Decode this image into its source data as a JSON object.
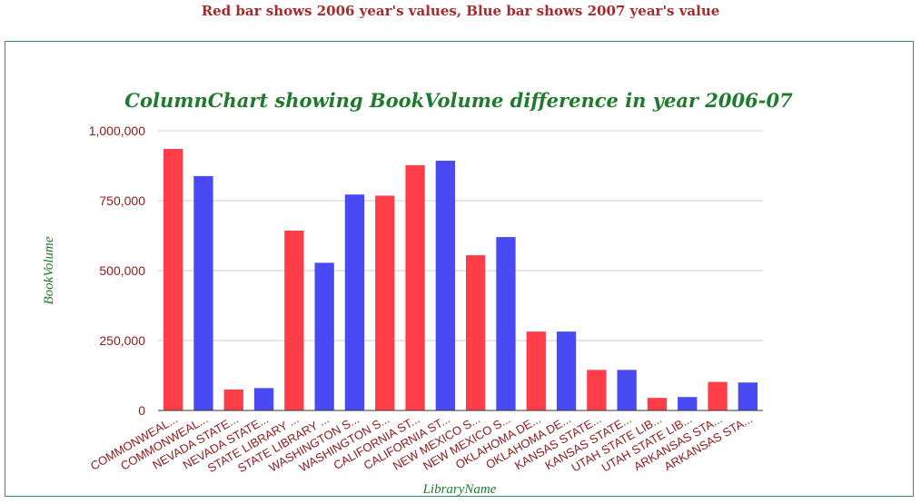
{
  "page": {
    "caption": "Red bar shows 2006 year's values, Blue bar shows 2007 year's value"
  },
  "colors": {
    "year_2006": "#ff3d48",
    "year_2007": "#4a4af5",
    "title": "#1f7a2e",
    "tick_label": "#8b1a1a",
    "frame": "#2a8a8a",
    "grid": "#cccccc"
  },
  "chart_data": {
    "type": "bar",
    "title": "ColumnChart showing BookVolume difference in year 2006-07",
    "xlabel": "LibraryName",
    "ylabel": "BookVolume",
    "ylim": [
      0,
      1000000
    ],
    "yticks": [
      "0",
      "250,000",
      "500,000",
      "750,000",
      "1,000,000"
    ],
    "ytick_values": [
      0,
      250000,
      500000,
      750000,
      1000000
    ],
    "grid": true,
    "legend": "none",
    "categories": [
      "COMMONWEAL...",
      "COMMONWEAL...",
      "NEVADA STATE...",
      "NEVADA STATE...",
      "STATE LIBRARY ...",
      "STATE LIBRARY ...",
      "WASHINGTON S...",
      "WASHINGTON S...",
      "CALIFORNIA ST...",
      "CALIFORNIA ST...",
      "NEW MEXICO S...",
      "NEW MEXICO S...",
      "OKLAHOMA DE...",
      "OKLAHOMA DE...",
      "KANSAS STATE...",
      "KANSAS STATE...",
      "UTAH STATE LIB...",
      "UTAH STATE LIB...",
      "ARKANSAS STA...",
      "ARKANSAS STA..."
    ],
    "values": [
      935000,
      838000,
      75000,
      80000,
      643000,
      528000,
      772000,
      768000,
      877000,
      893000,
      555000,
      620000,
      282000,
      282000,
      145000,
      145000,
      45000,
      48000,
      102000,
      100000
    ],
    "year_index": [
      0,
      1,
      0,
      1,
      0,
      1,
      1,
      0,
      0,
      1,
      0,
      1,
      0,
      1,
      0,
      1,
      0,
      1,
      0,
      1
    ]
  }
}
